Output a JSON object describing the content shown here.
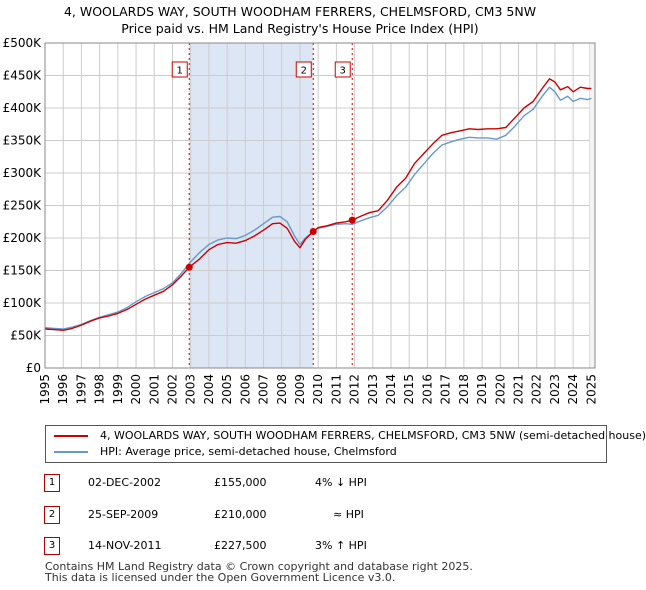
{
  "title_line1": "4, WOOLARDS WAY, SOUTH WOODHAM FERRERS, CHELMSFORD, CM3 5NW",
  "title_line2": "Price paid vs. HM Land Registry's House Price Index (HPI)",
  "chart_data": {
    "type": "line",
    "title": "4, WOOLARDS WAY, SOUTH WOODHAM FERRERS, CHELMSFORD, CM3 5NW — Price paid vs. HM Land Registry's House Price Index (HPI)",
    "xlabel": "",
    "ylabel": "",
    "xlim": [
      1995.0,
      2025.2
    ],
    "ylim": [
      0,
      500000
    ],
    "x_ticks": [
      "1995",
      "1996",
      "1997",
      "1998",
      "1999",
      "2000",
      "2001",
      "2002",
      "2003",
      "2004",
      "2005",
      "2006",
      "2007",
      "2008",
      "2009",
      "2010",
      "2011",
      "2012",
      "2013",
      "2014",
      "2015",
      "2016",
      "2017",
      "2018",
      "2019",
      "2020",
      "2021",
      "2022",
      "2023",
      "2024",
      "2025"
    ],
    "y_ticks": [
      {
        "value": 0,
        "label": "£0"
      },
      {
        "value": 50000,
        "label": "£50K"
      },
      {
        "value": 100000,
        "label": "£100K"
      },
      {
        "value": 150000,
        "label": "£150K"
      },
      {
        "value": 200000,
        "label": "£200K"
      },
      {
        "value": 250000,
        "label": "£250K"
      },
      {
        "value": 300000,
        "label": "£300K"
      },
      {
        "value": 350000,
        "label": "£350K"
      },
      {
        "value": 400000,
        "label": "£400K"
      },
      {
        "value": 450000,
        "label": "£450K"
      },
      {
        "value": 500000,
        "label": "£500K"
      }
    ],
    "grid": true,
    "series": [
      {
        "name": "4, WOOLARDS WAY, SOUTH WOODHAM FERRERS, CHELMSFORD, CM3 5NW (semi-detached house)",
        "color": "#cc0000",
        "x": [
          1995.0,
          1995.5,
          1996.0,
          1996.5,
          1997.0,
          1997.5,
          1998.0,
          1998.5,
          1999.0,
          1999.5,
          2000.0,
          2000.5,
          2001.0,
          2001.5,
          2002.0,
          2002.5,
          2002.92,
          2003.5,
          2004.0,
          2004.5,
          2005.0,
          2005.5,
          2006.0,
          2006.5,
          2007.0,
          2007.5,
          2007.9,
          2008.3,
          2008.7,
          2009.0,
          2009.3,
          2009.73,
          2010.0,
          2010.5,
          2011.0,
          2011.5,
          2011.87,
          2012.3,
          2012.8,
          2013.3,
          2013.8,
          2014.3,
          2014.8,
          2015.3,
          2015.8,
          2016.3,
          2016.8,
          2017.3,
          2017.8,
          2018.3,
          2018.8,
          2019.3,
          2019.8,
          2020.3,
          2020.8,
          2021.3,
          2021.8,
          2022.3,
          2022.7,
          2023.0,
          2023.3,
          2023.7,
          2024.0,
          2024.4,
          2024.8,
          2025.0
        ],
        "y": [
          60000,
          59000,
          58000,
          61000,
          66000,
          72000,
          77000,
          80000,
          84000,
          90000,
          98000,
          106000,
          112000,
          118000,
          128000,
          142000,
          155000,
          168000,
          182000,
          190000,
          193000,
          192000,
          196000,
          203000,
          212000,
          222000,
          223000,
          215000,
          195000,
          185000,
          198000,
          210000,
          216000,
          219000,
          223000,
          225000,
          227500,
          233000,
          239000,
          242000,
          258000,
          278000,
          292000,
          315000,
          330000,
          345000,
          358000,
          362000,
          365000,
          368000,
          367000,
          368000,
          368000,
          370000,
          385000,
          400000,
          410000,
          430000,
          445000,
          440000,
          428000,
          433000,
          425000,
          432000,
          430000,
          430000
        ]
      },
      {
        "name": "HPI: Average price, semi-detached house, Chelmsford",
        "color": "#6699cc",
        "x": [
          1995.0,
          1995.5,
          1996.0,
          1996.5,
          1997.0,
          1997.5,
          1998.0,
          1998.5,
          1999.0,
          1999.5,
          2000.0,
          2000.5,
          2001.0,
          2001.5,
          2002.0,
          2002.5,
          2002.92,
          2003.5,
          2004.0,
          2004.5,
          2005.0,
          2005.5,
          2006.0,
          2006.5,
          2007.0,
          2007.5,
          2007.9,
          2008.3,
          2008.7,
          2009.0,
          2009.3,
          2009.73,
          2010.0,
          2010.5,
          2011.0,
          2011.5,
          2011.87,
          2012.3,
          2012.8,
          2013.3,
          2013.8,
          2014.3,
          2014.8,
          2015.3,
          2015.8,
          2016.3,
          2016.8,
          2017.3,
          2017.8,
          2018.3,
          2018.8,
          2019.3,
          2019.8,
          2020.3,
          2020.8,
          2021.3,
          2021.8,
          2022.3,
          2022.7,
          2023.0,
          2023.3,
          2023.7,
          2024.0,
          2024.4,
          2024.8,
          2025.0
        ],
        "y": [
          62000,
          61000,
          60000,
          63000,
          67000,
          73000,
          78000,
          82000,
          86000,
          93000,
          102000,
          110000,
          116000,
          122000,
          131000,
          146000,
          161000,
          178000,
          190000,
          197000,
          200000,
          199000,
          204000,
          212000,
          222000,
          232000,
          233000,
          225000,
          203000,
          190000,
          200000,
          210000,
          215000,
          218000,
          221000,
          222000,
          221000,
          226000,
          231000,
          235000,
          248000,
          265000,
          278000,
          298000,
          314000,
          330000,
          343000,
          348000,
          352000,
          355000,
          354000,
          354000,
          352000,
          358000,
          372000,
          388000,
          398000,
          418000,
          432000,
          425000,
          412000,
          418000,
          410000,
          415000,
          413000,
          415000
        ]
      }
    ],
    "transactions": [
      {
        "label": "1",
        "x": 2002.92,
        "y": 155000,
        "date": "02-DEC-2002",
        "price": "£155,000",
        "hpi": "4% ↓ HPI"
      },
      {
        "label": "2",
        "x": 2009.73,
        "y": 210000,
        "date": "25-SEP-2009",
        "price": "£210,000",
        "hpi": "≈ HPI"
      },
      {
        "label": "3",
        "x": 2011.87,
        "y": 227500,
        "date": "14-NOV-2011",
        "price": "£227,500",
        "hpi": "3% ↑ HPI"
      }
    ]
  },
  "legend": {
    "property_label": "4, WOOLARDS WAY, SOUTH WOODHAM FERRERS, CHELMSFORD, CM3 5NW (semi-detached house)",
    "hpi_label": "HPI: Average price, semi-detached house, Chelmsford"
  },
  "footer_line1": "Contains HM Land Registry data © Crown copyright and database right 2025.",
  "footer_line2": "This data is licensed under the Open Government Licence v3.0."
}
